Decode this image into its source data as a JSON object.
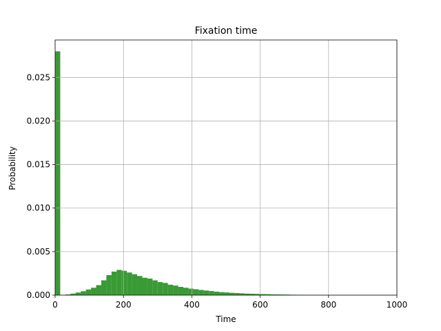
{
  "chart_data": {
    "type": "bar",
    "title": "Fixation time",
    "xlabel": "Time",
    "ylabel": "Probability",
    "xlim": [
      0,
      1000
    ],
    "ylim": [
      0,
      0.0293
    ],
    "grid": true,
    "bar_color": "#3a9a35",
    "bin_width": 15,
    "bin_starts": [
      0,
      15,
      30,
      45,
      60,
      75,
      90,
      105,
      120,
      135,
      150,
      165,
      180,
      195,
      210,
      225,
      240,
      255,
      270,
      285,
      300,
      315,
      330,
      345,
      360,
      375,
      390,
      405,
      420,
      435,
      450,
      465,
      480,
      495,
      510,
      525,
      540,
      555,
      570,
      585,
      600,
      615,
      630,
      645,
      660,
      675,
      690,
      705,
      720,
      735,
      750,
      765
    ],
    "values": [
      0.028,
      0.0,
      8e-05,
      0.00018,
      0.0003,
      0.00045,
      0.00065,
      0.00085,
      0.00115,
      0.0017,
      0.0023,
      0.0027,
      0.0029,
      0.0028,
      0.0026,
      0.0024,
      0.0022,
      0.002,
      0.0019,
      0.0017,
      0.0015,
      0.0014,
      0.0012,
      0.0011,
      0.00095,
      0.00085,
      0.00075,
      0.00068,
      0.0006,
      0.00053,
      0.00047,
      0.0004,
      0.00035,
      0.00031,
      0.00027,
      0.00024,
      0.00021,
      0.00018,
      0.00016,
      0.00014,
      0.00012,
      0.00011,
      9e-05,
      8e-05,
      7e-05,
      6e-05,
      5e-05,
      4e-05,
      3e-05,
      3e-05,
      2e-05,
      2e-05
    ],
    "xticks": [
      "0",
      "200",
      "400",
      "600",
      "800",
      "1000"
    ],
    "xtick_values": [
      0,
      200,
      400,
      600,
      800,
      1000
    ],
    "yticks": [
      "0.000",
      "0.005",
      "0.010",
      "0.015",
      "0.020",
      "0.025"
    ],
    "ytick_values": [
      0,
      0.005,
      0.01,
      0.015,
      0.02,
      0.025
    ]
  }
}
